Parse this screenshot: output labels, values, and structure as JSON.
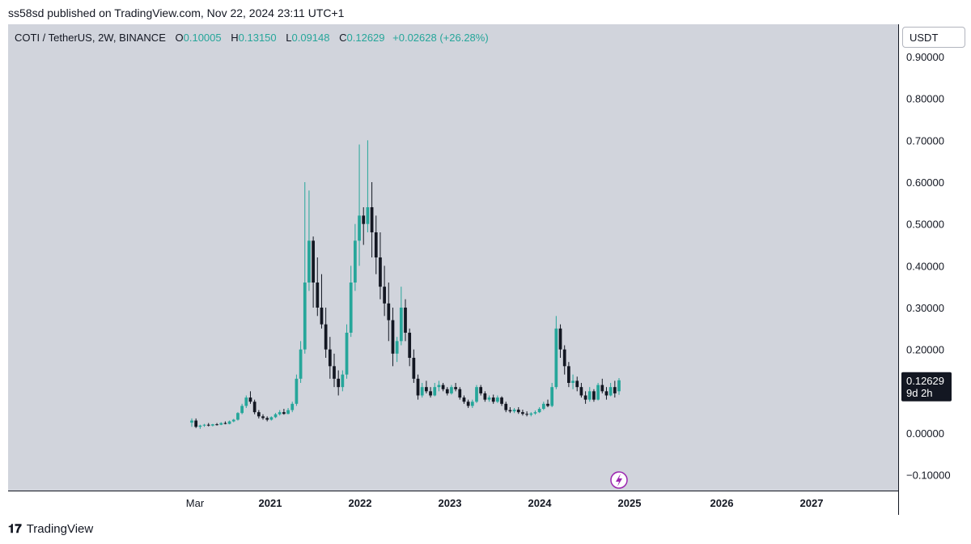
{
  "header": {
    "attribution": "ss58sd published on TradingView.com, Nov 22, 2024 23:11 UTC+1"
  },
  "legend": {
    "symbol": "COTI / TetherUS, 2W, BINANCE",
    "open_label": "O",
    "open": "0.10005",
    "high_label": "H",
    "high": "0.13150",
    "low_label": "L",
    "low": "0.09148",
    "close_label": "C",
    "close": "0.12629",
    "change": "+0.02628 (+26.28%)"
  },
  "currency": "USDT",
  "price_tag": {
    "price": "0.12629",
    "countdown": "9d 2h"
  },
  "footer": {
    "brand": "TradingView"
  },
  "colors": {
    "up": "#26a69a",
    "down": "#131722",
    "background": "#d1d4dc"
  },
  "chart_data": {
    "type": "candlestick",
    "title": "COTI / TetherUS, 2W, BINANCE",
    "y_ticks": [
      "0.90000",
      "0.80000",
      "0.70000",
      "0.60000",
      "0.50000",
      "0.40000",
      "0.30000",
      "0.20000",
      "0.10000",
      "0.00000",
      "−0.10000"
    ],
    "x_ticks": [
      "Mar",
      "2021",
      "2022",
      "2023",
      "2024",
      "2025",
      "2026",
      "2027"
    ],
    "ylim": [
      -0.135,
      0.95
    ],
    "grid": false,
    "candles": [
      [
        0.025,
        0.035,
        0.015,
        0.03
      ],
      [
        0.03,
        0.035,
        0.012,
        0.015
      ],
      [
        0.015,
        0.02,
        0.01,
        0.018
      ],
      [
        0.018,
        0.022,
        0.015,
        0.02
      ],
      [
        0.02,
        0.024,
        0.016,
        0.018
      ],
      [
        0.018,
        0.022,
        0.016,
        0.021
      ],
      [
        0.021,
        0.024,
        0.018,
        0.02
      ],
      [
        0.02,
        0.026,
        0.019,
        0.024
      ],
      [
        0.024,
        0.028,
        0.021,
        0.022
      ],
      [
        0.022,
        0.03,
        0.021,
        0.028
      ],
      [
        0.028,
        0.034,
        0.026,
        0.032
      ],
      [
        0.032,
        0.05,
        0.03,
        0.048
      ],
      [
        0.048,
        0.07,
        0.045,
        0.065
      ],
      [
        0.065,
        0.09,
        0.06,
        0.085
      ],
      [
        0.085,
        0.1,
        0.07,
        0.075
      ],
      [
        0.075,
        0.08,
        0.045,
        0.05
      ],
      [
        0.05,
        0.055,
        0.035,
        0.04
      ],
      [
        0.04,
        0.045,
        0.032,
        0.036
      ],
      [
        0.036,
        0.04,
        0.028,
        0.032
      ],
      [
        0.032,
        0.04,
        0.03,
        0.038
      ],
      [
        0.038,
        0.048,
        0.036,
        0.045
      ],
      [
        0.045,
        0.055,
        0.042,
        0.05
      ],
      [
        0.05,
        0.058,
        0.044,
        0.046
      ],
      [
        0.046,
        0.06,
        0.045,
        0.055
      ],
      [
        0.055,
        0.075,
        0.05,
        0.07
      ],
      [
        0.07,
        0.14,
        0.065,
        0.13
      ],
      [
        0.13,
        0.22,
        0.12,
        0.2
      ],
      [
        0.2,
        0.6,
        0.19,
        0.36
      ],
      [
        0.36,
        0.58,
        0.34,
        0.46
      ],
      [
        0.46,
        0.47,
        0.3,
        0.36
      ],
      [
        0.36,
        0.42,
        0.28,
        0.3
      ],
      [
        0.3,
        0.38,
        0.25,
        0.26
      ],
      [
        0.26,
        0.3,
        0.18,
        0.2
      ],
      [
        0.2,
        0.23,
        0.13,
        0.16
      ],
      [
        0.16,
        0.19,
        0.11,
        0.13
      ],
      [
        0.13,
        0.15,
        0.09,
        0.11
      ],
      [
        0.11,
        0.15,
        0.1,
        0.14
      ],
      [
        0.14,
        0.26,
        0.13,
        0.24
      ],
      [
        0.24,
        0.4,
        0.23,
        0.36
      ],
      [
        0.36,
        0.5,
        0.34,
        0.46
      ],
      [
        0.46,
        0.69,
        0.4,
        0.52
      ],
      [
        0.52,
        0.54,
        0.45,
        0.5
      ],
      [
        0.5,
        0.7,
        0.48,
        0.54
      ],
      [
        0.54,
        0.6,
        0.42,
        0.48
      ],
      [
        0.48,
        0.52,
        0.38,
        0.42
      ],
      [
        0.42,
        0.48,
        0.32,
        0.35
      ],
      [
        0.35,
        0.4,
        0.28,
        0.31
      ],
      [
        0.31,
        0.36,
        0.22,
        0.27
      ],
      [
        0.27,
        0.3,
        0.16,
        0.19
      ],
      [
        0.19,
        0.23,
        0.17,
        0.22
      ],
      [
        0.22,
        0.35,
        0.21,
        0.3
      ],
      [
        0.3,
        0.32,
        0.22,
        0.24
      ],
      [
        0.24,
        0.25,
        0.16,
        0.18
      ],
      [
        0.18,
        0.2,
        0.12,
        0.13
      ],
      [
        0.13,
        0.14,
        0.08,
        0.09
      ],
      [
        0.09,
        0.12,
        0.085,
        0.11
      ],
      [
        0.11,
        0.125,
        0.095,
        0.1
      ],
      [
        0.1,
        0.11,
        0.085,
        0.09
      ],
      [
        0.09,
        0.12,
        0.088,
        0.11
      ],
      [
        0.11,
        0.125,
        0.1,
        0.115
      ],
      [
        0.115,
        0.12,
        0.1,
        0.105
      ],
      [
        0.105,
        0.11,
        0.09,
        0.095
      ],
      [
        0.095,
        0.115,
        0.092,
        0.11
      ],
      [
        0.11,
        0.12,
        0.1,
        0.105
      ],
      [
        0.105,
        0.11,
        0.08,
        0.085
      ],
      [
        0.085,
        0.09,
        0.07,
        0.075
      ],
      [
        0.075,
        0.08,
        0.06,
        0.065
      ],
      [
        0.065,
        0.08,
        0.06,
        0.075
      ],
      [
        0.075,
        0.115,
        0.072,
        0.11
      ],
      [
        0.11,
        0.115,
        0.09,
        0.095
      ],
      [
        0.095,
        0.1,
        0.075,
        0.08
      ],
      [
        0.08,
        0.09,
        0.075,
        0.085
      ],
      [
        0.085,
        0.092,
        0.07,
        0.075
      ],
      [
        0.075,
        0.09,
        0.072,
        0.085
      ],
      [
        0.085,
        0.088,
        0.065,
        0.07
      ],
      [
        0.07,
        0.075,
        0.05,
        0.055
      ],
      [
        0.055,
        0.062,
        0.048,
        0.052
      ],
      [
        0.052,
        0.06,
        0.048,
        0.056
      ],
      [
        0.056,
        0.062,
        0.046,
        0.05
      ],
      [
        0.05,
        0.056,
        0.042,
        0.046
      ],
      [
        0.046,
        0.052,
        0.04,
        0.044
      ],
      [
        0.044,
        0.05,
        0.04,
        0.047
      ],
      [
        0.047,
        0.054,
        0.044,
        0.05
      ],
      [
        0.05,
        0.062,
        0.048,
        0.058
      ],
      [
        0.058,
        0.075,
        0.055,
        0.07
      ],
      [
        0.07,
        0.08,
        0.062,
        0.065
      ],
      [
        0.065,
        0.12,
        0.062,
        0.11
      ],
      [
        0.11,
        0.28,
        0.105,
        0.25
      ],
      [
        0.25,
        0.26,
        0.18,
        0.2
      ],
      [
        0.2,
        0.21,
        0.14,
        0.16
      ],
      [
        0.16,
        0.17,
        0.11,
        0.12
      ],
      [
        0.12,
        0.14,
        0.105,
        0.125
      ],
      [
        0.125,
        0.135,
        0.1,
        0.11
      ],
      [
        0.11,
        0.12,
        0.085,
        0.09
      ],
      [
        0.09,
        0.1,
        0.07,
        0.08
      ],
      [
        0.08,
        0.11,
        0.075,
        0.1
      ],
      [
        0.1,
        0.105,
        0.075,
        0.08
      ],
      [
        0.08,
        0.12,
        0.078,
        0.115
      ],
      [
        0.115,
        0.13,
        0.095,
        0.1
      ],
      [
        0.1,
        0.11,
        0.08,
        0.09
      ],
      [
        0.09,
        0.12,
        0.088,
        0.11
      ],
      [
        0.11,
        0.125,
        0.085,
        0.095
      ],
      [
        0.10005,
        0.1315,
        0.09148,
        0.12629
      ]
    ]
  }
}
